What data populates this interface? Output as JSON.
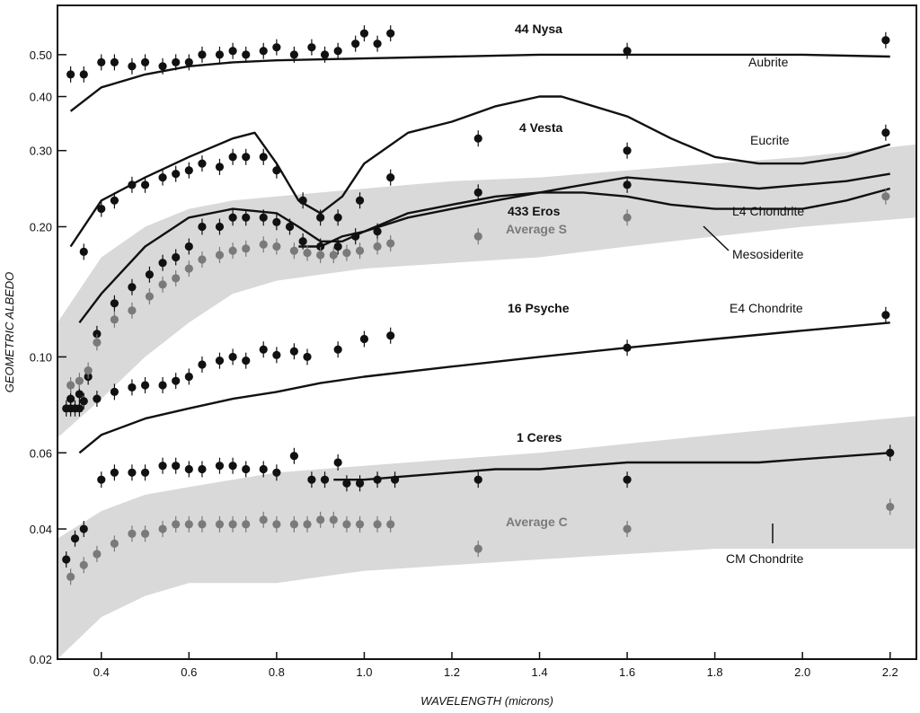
{
  "chart_data": {
    "type": "scatter",
    "xlabel": "WAVELENGTH (microns)",
    "ylabel": "GEOMETRIC ALBEDO",
    "x_scale": "linear",
    "y_scale": "log",
    "xlim": [
      0.3,
      2.26
    ],
    "ylim": [
      0.02,
      0.65
    ],
    "x_ticks": [
      0.4,
      0.6,
      0.8,
      1.0,
      1.2,
      1.4,
      1.6,
      1.8,
      2.0,
      2.2
    ],
    "x_tick_labels": [
      "0.4",
      "0.6",
      "0.8",
      "1.0",
      "1.2",
      "1.4",
      "1.6",
      "1.8",
      "2.0",
      "2.2"
    ],
    "y_ticks": [
      0.02,
      0.04,
      0.06,
      0.1,
      0.2,
      0.3,
      0.4,
      0.5
    ],
    "y_tick_labels": [
      "0.02",
      "0.04",
      "0.06",
      "0.10",
      "0.20",
      "0.30",
      "0.40",
      "0.50"
    ],
    "grid": false,
    "series": [
      {
        "name": "44 Nysa",
        "kind": "points",
        "color": "#111111",
        "x": [
          0.33,
          0.36,
          0.4,
          0.43,
          0.47,
          0.5,
          0.54,
          0.57,
          0.6,
          0.63,
          0.67,
          0.7,
          0.73,
          0.77,
          0.8,
          0.84,
          0.88,
          0.91,
          0.94,
          0.98,
          1.0,
          1.03,
          1.06,
          1.6,
          2.19
        ],
        "y": [
          0.45,
          0.45,
          0.48,
          0.48,
          0.47,
          0.48,
          0.47,
          0.48,
          0.48,
          0.5,
          0.5,
          0.51,
          0.5,
          0.51,
          0.52,
          0.5,
          0.52,
          0.5,
          0.51,
          0.53,
          0.56,
          0.53,
          0.56,
          0.51,
          0.54
        ]
      },
      {
        "name": "4 Vesta",
        "kind": "points",
        "color": "#111111",
        "x": [
          0.36,
          0.4,
          0.43,
          0.47,
          0.5,
          0.54,
          0.57,
          0.6,
          0.63,
          0.67,
          0.7,
          0.73,
          0.77,
          0.8,
          0.86,
          0.9,
          0.94,
          0.99,
          1.06,
          1.26,
          1.6,
          2.19
        ],
        "y": [
          0.175,
          0.22,
          0.23,
          0.25,
          0.25,
          0.26,
          0.265,
          0.27,
          0.28,
          0.275,
          0.29,
          0.29,
          0.29,
          0.27,
          0.23,
          0.21,
          0.21,
          0.23,
          0.26,
          0.32,
          0.3,
          0.33
        ]
      },
      {
        "name": "433 Eros",
        "kind": "points",
        "color": "#111111",
        "x": [
          0.33,
          0.35,
          0.37,
          0.39,
          0.43,
          0.47,
          0.51,
          0.54,
          0.57,
          0.6,
          0.63,
          0.67,
          0.7,
          0.73,
          0.77,
          0.8,
          0.83,
          0.86,
          0.9,
          0.94,
          0.98,
          1.03,
          1.26,
          1.6
        ],
        "y": [
          0.08,
          0.082,
          0.09,
          0.113,
          0.133,
          0.145,
          0.155,
          0.165,
          0.17,
          0.18,
          0.2,
          0.2,
          0.21,
          0.21,
          0.21,
          0.205,
          0.2,
          0.185,
          0.18,
          0.18,
          0.19,
          0.195,
          0.24,
          0.25
        ]
      },
      {
        "name": "Average S",
        "kind": "points",
        "color": "#7a7a7a",
        "x": [
          0.33,
          0.35,
          0.37,
          0.39,
          0.43,
          0.47,
          0.51,
          0.54,
          0.57,
          0.6,
          0.63,
          0.67,
          0.7,
          0.73,
          0.77,
          0.8,
          0.84,
          0.87,
          0.9,
          0.93,
          0.96,
          0.99,
          1.03,
          1.06,
          1.26,
          1.6,
          2.19
        ],
        "y": [
          0.086,
          0.088,
          0.093,
          0.108,
          0.122,
          0.128,
          0.138,
          0.147,
          0.152,
          0.16,
          0.168,
          0.172,
          0.176,
          0.178,
          0.182,
          0.18,
          0.176,
          0.174,
          0.172,
          0.172,
          0.174,
          0.176,
          0.18,
          0.183,
          0.19,
          0.21,
          0.235
        ]
      },
      {
        "name": "16 Psyche",
        "kind": "points",
        "color": "#111111",
        "x": [
          0.32,
          0.33,
          0.34,
          0.35,
          0.36,
          0.39,
          0.43,
          0.47,
          0.5,
          0.54,
          0.57,
          0.6,
          0.63,
          0.67,
          0.7,
          0.73,
          0.77,
          0.8,
          0.84,
          0.87,
          0.94,
          1.0,
          1.06,
          1.6,
          2.19
        ],
        "y": [
          0.076,
          0.076,
          0.076,
          0.076,
          0.079,
          0.08,
          0.083,
          0.085,
          0.086,
          0.086,
          0.088,
          0.09,
          0.096,
          0.098,
          0.1,
          0.098,
          0.104,
          0.101,
          0.103,
          0.1,
          0.104,
          0.11,
          0.112,
          0.105,
          0.125
        ]
      },
      {
        "name": "1 Ceres",
        "kind": "points",
        "color": "#111111",
        "x": [
          0.32,
          0.34,
          0.36,
          0.4,
          0.43,
          0.47,
          0.5,
          0.54,
          0.57,
          0.6,
          0.63,
          0.67,
          0.7,
          0.73,
          0.77,
          0.8,
          0.84,
          0.88,
          0.91,
          0.94,
          0.96,
          0.99,
          1.03,
          1.07,
          1.26,
          1.6,
          2.2
        ],
        "y": [
          0.034,
          0.038,
          0.04,
          0.052,
          0.054,
          0.054,
          0.054,
          0.056,
          0.056,
          0.055,
          0.055,
          0.056,
          0.056,
          0.055,
          0.055,
          0.054,
          0.059,
          0.052,
          0.052,
          0.057,
          0.051,
          0.051,
          0.052,
          0.052,
          0.052,
          0.052,
          0.06
        ]
      },
      {
        "name": "Average C",
        "kind": "points",
        "color": "#7a7a7a",
        "x": [
          0.33,
          0.36,
          0.39,
          0.43,
          0.47,
          0.5,
          0.54,
          0.57,
          0.6,
          0.63,
          0.67,
          0.7,
          0.73,
          0.77,
          0.8,
          0.84,
          0.87,
          0.9,
          0.93,
          0.96,
          0.99,
          1.03,
          1.06,
          1.26,
          1.6,
          2.2
        ],
        "y": [
          0.031,
          0.033,
          0.035,
          0.037,
          0.039,
          0.039,
          0.04,
          0.041,
          0.041,
          0.041,
          0.041,
          0.041,
          0.041,
          0.042,
          0.041,
          0.041,
          0.041,
          0.042,
          0.042,
          0.041,
          0.041,
          0.041,
          0.041,
          0.036,
          0.04,
          0.045
        ]
      },
      {
        "name": "Aubrite",
        "kind": "line",
        "color": "#111111",
        "x": [
          0.33,
          0.4,
          0.5,
          0.6,
          0.7,
          0.8,
          1.0,
          1.2,
          1.4,
          1.6,
          1.8,
          2.0,
          2.2
        ],
        "y": [
          0.37,
          0.42,
          0.45,
          0.47,
          0.48,
          0.485,
          0.49,
          0.495,
          0.5,
          0.5,
          0.5,
          0.5,
          0.495
        ]
      },
      {
        "name": "Eucrite",
        "kind": "line",
        "color": "#111111",
        "x": [
          0.33,
          0.4,
          0.5,
          0.6,
          0.7,
          0.75,
          0.8,
          0.85,
          0.9,
          0.95,
          1.0,
          1.1,
          1.2,
          1.3,
          1.4,
          1.45,
          1.6,
          1.7,
          1.8,
          1.9,
          2.0,
          2.1,
          2.2
        ],
        "y": [
          0.18,
          0.23,
          0.26,
          0.29,
          0.32,
          0.33,
          0.28,
          0.23,
          0.215,
          0.235,
          0.28,
          0.33,
          0.35,
          0.38,
          0.4,
          0.4,
          0.36,
          0.32,
          0.29,
          0.28,
          0.28,
          0.29,
          0.31
        ]
      },
      {
        "name": "L4 Chondrite",
        "kind": "line",
        "color": "#111111",
        "x": [
          0.35,
          0.4,
          0.5,
          0.6,
          0.7,
          0.8,
          0.85,
          0.9,
          0.95,
          1.0,
          1.1,
          1.2,
          1.3,
          1.4,
          1.5,
          1.6,
          1.7,
          1.8,
          1.9,
          2.0,
          2.1,
          2.2
        ],
        "y": [
          0.12,
          0.14,
          0.18,
          0.21,
          0.22,
          0.215,
          0.2,
          0.185,
          0.185,
          0.195,
          0.215,
          0.225,
          0.235,
          0.24,
          0.24,
          0.235,
          0.225,
          0.22,
          0.22,
          0.22,
          0.23,
          0.245
        ]
      },
      {
        "name": "Mesosiderite",
        "kind": "line",
        "color": "#111111",
        "x": [
          0.85,
          0.9,
          0.95,
          1.0,
          1.1,
          1.2,
          1.3,
          1.4,
          1.5,
          1.6,
          1.7,
          1.8,
          1.9,
          2.0,
          2.1,
          2.2
        ],
        "y": [
          0.18,
          0.18,
          0.19,
          0.195,
          0.21,
          0.22,
          0.23,
          0.24,
          0.25,
          0.26,
          0.255,
          0.25,
          0.245,
          0.25,
          0.255,
          0.265
        ]
      },
      {
        "name": "E4 Chondrite",
        "kind": "line",
        "color": "#111111",
        "x": [
          0.35,
          0.4,
          0.5,
          0.6,
          0.7,
          0.8,
          0.9,
          1.0,
          1.2,
          1.4,
          1.6,
          1.8,
          2.0,
          2.2
        ],
        "y": [
          0.06,
          0.066,
          0.072,
          0.076,
          0.08,
          0.083,
          0.087,
          0.09,
          0.095,
          0.1,
          0.105,
          0.11,
          0.115,
          0.12
        ]
      },
      {
        "name": "CM Chondrite",
        "kind": "line",
        "color": "#111111",
        "x": [
          0.93,
          1.0,
          1.1,
          1.2,
          1.3,
          1.4,
          1.5,
          1.6,
          1.7,
          1.8,
          1.9,
          2.0,
          2.1,
          2.2
        ],
        "y": [
          0.052,
          0.052,
          0.053,
          0.054,
          0.055,
          0.055,
          0.056,
          0.057,
          0.057,
          0.057,
          0.057,
          0.058,
          0.059,
          0.06
        ]
      }
    ],
    "bands": [
      {
        "name": "S band",
        "x": [
          0.3,
          0.4,
          0.5,
          0.6,
          0.7,
          0.8,
          0.9,
          1.0,
          1.2,
          1.4,
          1.6,
          1.8,
          2.0,
          2.26
        ],
        "upper": [
          0.12,
          0.17,
          0.2,
          0.22,
          0.23,
          0.235,
          0.24,
          0.245,
          0.255,
          0.26,
          0.27,
          0.28,
          0.29,
          0.31
        ],
        "lower": [
          0.065,
          0.08,
          0.1,
          0.12,
          0.14,
          0.15,
          0.155,
          0.16,
          0.165,
          0.17,
          0.18,
          0.19,
          0.2,
          0.21
        ]
      },
      {
        "name": "C band",
        "x": [
          0.3,
          0.4,
          0.5,
          0.6,
          0.7,
          0.8,
          0.9,
          1.0,
          1.2,
          1.4,
          1.6,
          1.8,
          2.0,
          2.26
        ],
        "upper": [
          0.038,
          0.044,
          0.048,
          0.05,
          0.052,
          0.054,
          0.055,
          0.056,
          0.058,
          0.06,
          0.063,
          0.066,
          0.069,
          0.073
        ],
        "lower": [
          0.02,
          0.025,
          0.028,
          0.03,
          0.03,
          0.03,
          0.031,
          0.032,
          0.033,
          0.034,
          0.035,
          0.036,
          0.036,
          0.036
        ]
      }
    ],
    "annotations": {
      "nysa": "44 Nysa",
      "aubrite": "Aubrite",
      "vesta": "4 Vesta",
      "eucrite": "Eucrite",
      "eros": "433 Eros",
      "l4": "L4 Chondrite",
      "average_s": "Average S",
      "mesosiderite": "Mesosiderite",
      "psyche": "16 Psyche",
      "e4": "E4 Chondrite",
      "ceres": "1 Ceres",
      "average_c": "Average C",
      "cm": "CM Chondrite"
    }
  }
}
